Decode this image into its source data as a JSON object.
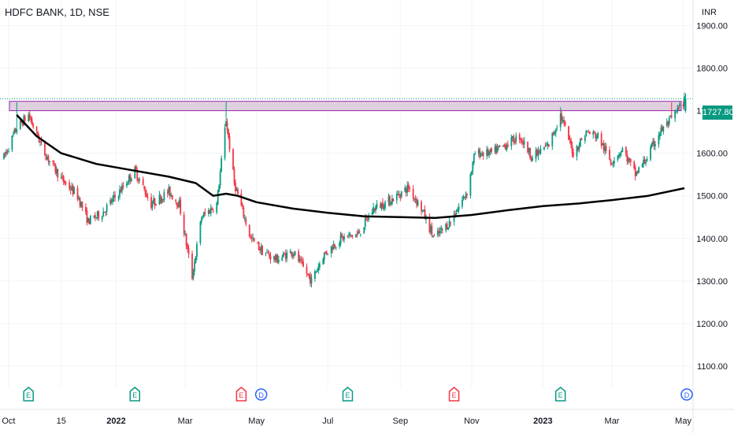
{
  "header": {
    "symbol_title": "HDFC BANK, 1D, NSE",
    "currency": "INR"
  },
  "last_price": {
    "label": "1727.80",
    "value": 1727.8,
    "color": "#089981"
  },
  "colors": {
    "up": "#089981",
    "down": "#f23645",
    "ma": "#000000",
    "zone_fill": "#d9c8d8",
    "zone_border": "#9c27b0",
    "grid": "#f0f3fa"
  },
  "chart_data": {
    "type": "candlestick",
    "title": "HDFC BANK, 1D, NSE",
    "ylabel": "INR",
    "ylim": [
      1050,
      1960
    ],
    "y_ticks": [
      "1900.00",
      "1800.00",
      "1700.00",
      "1600.00",
      "1500.00",
      "1400.00",
      "1300.00",
      "1200.00",
      "1100.00"
    ],
    "x_ticks": [
      {
        "label": "Oct",
        "date": "2021-10-01",
        "bold": false
      },
      {
        "label": "15",
        "date": "2021-11-15",
        "bold": false
      },
      {
        "label": "2022",
        "date": "2022-01-01",
        "bold": true
      },
      {
        "label": "Mar",
        "date": "2022-03-01",
        "bold": false
      },
      {
        "label": "May",
        "date": "2022-05-01",
        "bold": false
      },
      {
        "label": "Jul",
        "date": "2022-07-01",
        "bold": false
      },
      {
        "label": "Sep",
        "date": "2022-09-01",
        "bold": false
      },
      {
        "label": "Nov",
        "date": "2022-11-01",
        "bold": false
      },
      {
        "label": "2023",
        "date": "2023-01-01",
        "bold": true
      },
      {
        "label": "Mar",
        "date": "2023-03-01",
        "bold": false
      },
      {
        "label": "May",
        "date": "2023-05-01",
        "bold": false
      }
    ],
    "price_path": [
      [
        "2021-09-27",
        1590
      ],
      [
        "2021-10-08",
        1660
      ],
      [
        "2021-10-18",
        1690
      ],
      [
        "2021-11-01",
        1600
      ],
      [
        "2021-11-15",
        1540
      ],
      [
        "2021-11-29",
        1500
      ],
      [
        "2021-12-08",
        1440
      ],
      [
        "2021-12-20",
        1460
      ],
      [
        "2022-01-04",
        1510
      ],
      [
        "2022-01-17",
        1560
      ],
      [
        "2022-01-31",
        1480
      ],
      [
        "2022-02-15",
        1510
      ],
      [
        "2022-02-24",
        1480
      ],
      [
        "2022-03-07",
        1310
      ],
      [
        "2022-03-15",
        1450
      ],
      [
        "2022-03-28",
        1480
      ],
      [
        "2022-04-05",
        1680
      ],
      [
        "2022-04-12",
        1530
      ],
      [
        "2022-04-26",
        1400
      ],
      [
        "2022-05-06",
        1370
      ],
      [
        "2022-05-18",
        1350
      ],
      [
        "2022-06-01",
        1370
      ],
      [
        "2022-06-17",
        1300
      ],
      [
        "2022-06-27",
        1360
      ],
      [
        "2022-07-12",
        1400
      ],
      [
        "2022-07-27",
        1410
      ],
      [
        "2022-08-09",
        1470
      ],
      [
        "2022-08-24",
        1490
      ],
      [
        "2022-09-08",
        1520
      ],
      [
        "2022-09-19",
        1470
      ],
      [
        "2022-09-30",
        1400
      ],
      [
        "2022-10-14",
        1440
      ],
      [
        "2022-10-28",
        1510
      ],
      [
        "2022-11-04",
        1600
      ],
      [
        "2022-11-18",
        1600
      ],
      [
        "2022-11-30",
        1620
      ],
      [
        "2022-12-12",
        1640
      ],
      [
        "2022-12-23",
        1590
      ],
      [
        "2023-01-06",
        1620
      ],
      [
        "2023-01-16",
        1690
      ],
      [
        "2023-01-27",
        1600
      ],
      [
        "2023-02-07",
        1650
      ],
      [
        "2023-02-17",
        1640
      ],
      [
        "2023-02-28",
        1580
      ],
      [
        "2023-03-10",
        1610
      ],
      [
        "2023-03-21",
        1550
      ],
      [
        "2023-03-31",
        1590
      ],
      [
        "2023-04-11",
        1650
      ],
      [
        "2023-04-21",
        1680
      ],
      [
        "2023-05-03",
        1727.8
      ]
    ],
    "spike_highs": [
      {
        "date": "2021-10-08",
        "high": 1720
      },
      {
        "date": "2022-04-05",
        "high": 1722
      },
      {
        "date": "2023-01-16",
        "high": 1708
      },
      {
        "date": "2023-04-21",
        "high": 1720
      }
    ],
    "moving_average": [
      [
        "2021-10-08",
        1690
      ],
      [
        "2021-10-25",
        1640
      ],
      [
        "2021-11-15",
        1600
      ],
      [
        "2021-12-15",
        1575
      ],
      [
        "2022-01-15",
        1560
      ],
      [
        "2022-02-15",
        1545
      ],
      [
        "2022-03-10",
        1530
      ],
      [
        "2022-03-25",
        1500
      ],
      [
        "2022-04-05",
        1505
      ],
      [
        "2022-04-15",
        1500
      ],
      [
        "2022-05-01",
        1485
      ],
      [
        "2022-06-01",
        1470
      ],
      [
        "2022-07-01",
        1460
      ],
      [
        "2022-08-01",
        1452
      ],
      [
        "2022-09-01",
        1450
      ],
      [
        "2022-10-01",
        1448
      ],
      [
        "2022-11-01",
        1455
      ],
      [
        "2022-12-01",
        1466
      ],
      [
        "2023-01-01",
        1476
      ],
      [
        "2023-02-01",
        1482
      ],
      [
        "2023-03-01",
        1490
      ],
      [
        "2023-04-01",
        1500
      ],
      [
        "2023-05-02",
        1518
      ]
    ],
    "resistance_zone": {
      "from": "2021-10-01",
      "to": "2023-05-02",
      "low": 1700,
      "high": 1722
    },
    "events": [
      {
        "label": "E",
        "date": "2021-10-18",
        "color": "#089981",
        "kind": "earnings"
      },
      {
        "label": "E",
        "date": "2022-01-17",
        "color": "#089981",
        "kind": "earnings"
      },
      {
        "label": "E",
        "date": "2022-04-18",
        "color": "#f23645",
        "kind": "earnings"
      },
      {
        "label": "D",
        "date": "2022-05-05",
        "color": "#2962ff",
        "kind": "dividend"
      },
      {
        "label": "E",
        "date": "2022-07-18",
        "color": "#089981",
        "kind": "earnings"
      },
      {
        "label": "E",
        "date": "2022-10-17",
        "color": "#f23645",
        "kind": "earnings"
      },
      {
        "label": "E",
        "date": "2023-01-16",
        "color": "#089981",
        "kind": "earnings"
      },
      {
        "label": "D",
        "date": "2023-05-04",
        "color": "#2962ff",
        "kind": "dividend"
      }
    ]
  }
}
